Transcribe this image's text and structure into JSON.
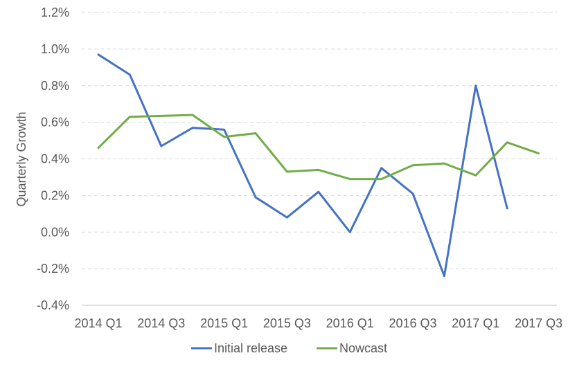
{
  "chart_data": {
    "type": "line",
    "title": "",
    "xlabel": "",
    "ylabel": "Quarterly Growth",
    "ylim": [
      -0.4,
      1.2
    ],
    "y_unit": "%",
    "y_ticks": [
      -0.4,
      -0.2,
      0.0,
      0.2,
      0.4,
      0.6,
      0.8,
      1.0,
      1.2
    ],
    "y_tick_labels": [
      "-0.4%",
      "-0.2%",
      "0.0%",
      "0.2%",
      "0.4%",
      "0.6%",
      "0.8%",
      "1.0%",
      "1.2%"
    ],
    "categories": [
      "2014 Q1",
      "2014 Q2",
      "2014 Q3",
      "2014 Q4",
      "2015 Q1",
      "2015 Q2",
      "2015 Q3",
      "2015 Q4",
      "2016 Q1",
      "2016 Q2",
      "2016 Q3",
      "2016 Q4",
      "2017 Q1",
      "2017 Q2",
      "2017 Q3"
    ],
    "x_tick_labels": [
      "2014 Q1",
      "2014 Q3",
      "2015 Q1",
      "2015 Q3",
      "2016 Q1",
      "2016 Q3",
      "2017 Q1",
      "2017 Q3"
    ],
    "grid": true,
    "legend_position": "bottom",
    "series": [
      {
        "name": "Initial release",
        "color": "#4472C4",
        "values": [
          0.97,
          0.86,
          0.47,
          0.57,
          0.56,
          0.19,
          0.08,
          0.22,
          0.0,
          0.35,
          0.21,
          -0.24,
          0.8,
          0.13,
          null
        ]
      },
      {
        "name": "Nowcast",
        "color": "#70AD47",
        "values": [
          0.46,
          0.63,
          0.635,
          0.64,
          0.52,
          0.54,
          0.33,
          0.34,
          0.29,
          0.29,
          0.365,
          0.375,
          0.31,
          0.49,
          0.43
        ]
      }
    ]
  }
}
